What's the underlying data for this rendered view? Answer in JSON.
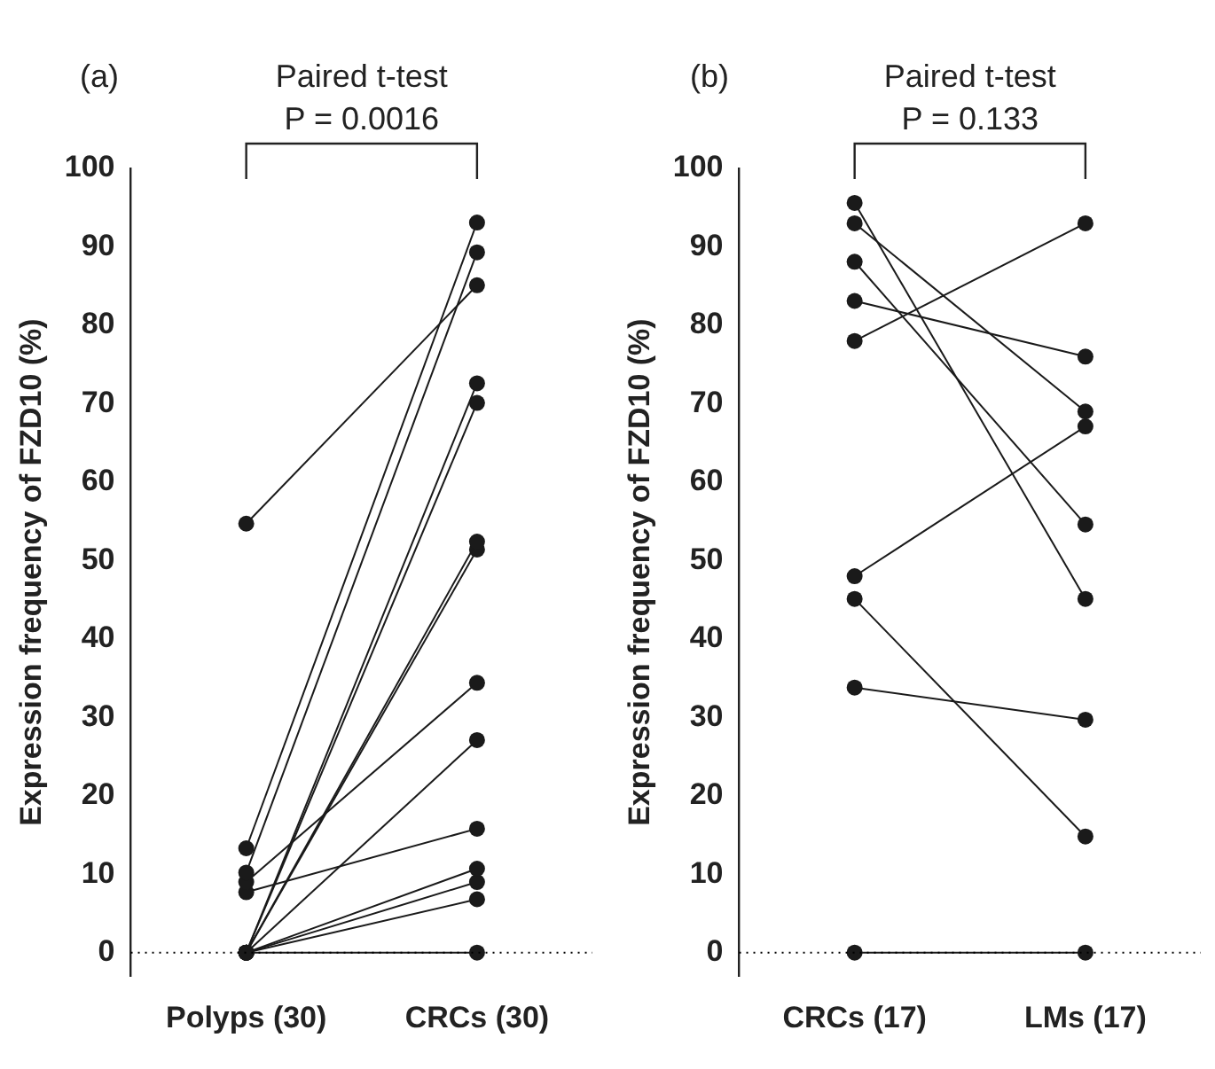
{
  "chart_data": [
    {
      "type": "line",
      "title": "(a)",
      "ylabel": "Expression frequency of FZD10 (%)",
      "categories": [
        "Polyps (30)",
        "CRCs (30)"
      ],
      "ylim": [
        -3,
        100
      ],
      "yticks": [
        0,
        10,
        20,
        30,
        40,
        50,
        60,
        70,
        80,
        90,
        100
      ],
      "grid": false,
      "legend": false,
      "marker": "circle",
      "line_style": "solid",
      "ref_lines": [
        {
          "axis": "y",
          "value": 0,
          "line_style": "dotted",
          "color": "#000000"
        }
      ],
      "annotations": [
        "Paired t-test",
        "P = 0.0016"
      ],
      "series": [
        {
          "color": "#1a1a1a",
          "values": [
            54.7,
            85.1
          ]
        },
        {
          "color": "#1a1a1a",
          "values": [
            13.3,
            93.1
          ]
        },
        {
          "color": "#1a1a1a",
          "values": [
            10.2,
            89.3
          ]
        },
        {
          "color": "#1a1a1a",
          "values": [
            9.0,
            34.4
          ]
        },
        {
          "color": "#1a1a1a",
          "values": [
            7.7,
            15.8
          ]
        },
        {
          "color": "#1a1a1a",
          "values": [
            0,
            72.6
          ]
        },
        {
          "color": "#1a1a1a",
          "values": [
            0,
            70.1
          ]
        },
        {
          "color": "#1a1a1a",
          "values": [
            0,
            52.4
          ]
        },
        {
          "color": "#1a1a1a",
          "values": [
            0,
            51.4
          ]
        },
        {
          "color": "#1a1a1a",
          "values": [
            0,
            27.1
          ]
        },
        {
          "color": "#1a1a1a",
          "values": [
            0,
            10.7
          ]
        },
        {
          "color": "#1a1a1a",
          "values": [
            0,
            9.0
          ]
        },
        {
          "color": "#1a1a1a",
          "values": [
            0,
            6.8
          ]
        },
        {
          "color": "#1a1a1a",
          "values": [
            0,
            0
          ]
        }
      ]
    },
    {
      "type": "line",
      "title": "(b)",
      "ylabel": "Expression frequency of FZD10 (%)",
      "categories": [
        "CRCs (17)",
        "LMs (17)"
      ],
      "ylim": [
        -3,
        100
      ],
      "yticks": [
        0,
        10,
        20,
        30,
        40,
        50,
        60,
        70,
        80,
        90,
        100
      ],
      "grid": false,
      "legend": false,
      "marker": "circle",
      "line_style": "solid",
      "ref_lines": [
        {
          "axis": "y",
          "value": 0,
          "line_style": "dotted",
          "color": "#000000"
        }
      ],
      "annotations": [
        "Paired t-test",
        "P = 0.133"
      ],
      "series": [
        {
          "color": "#1a1a1a",
          "values": [
            95.6,
            45.1
          ]
        },
        {
          "color": "#1a1a1a",
          "values": [
            93.0,
            69.0
          ]
        },
        {
          "color": "#1a1a1a",
          "values": [
            88.1,
            54.6
          ]
        },
        {
          "color": "#1a1a1a",
          "values": [
            83.1,
            76.0
          ]
        },
        {
          "color": "#1a1a1a",
          "values": [
            78.0,
            93.0
          ]
        },
        {
          "color": "#1a1a1a",
          "values": [
            48.0,
            67.1
          ]
        },
        {
          "color": "#1a1a1a",
          "values": [
            45.1,
            14.8
          ]
        },
        {
          "color": "#1a1a1a",
          "values": [
            33.8,
            29.7
          ]
        },
        {
          "color": "#1a1a1a",
          "values": [
            0,
            0
          ]
        }
      ]
    }
  ]
}
